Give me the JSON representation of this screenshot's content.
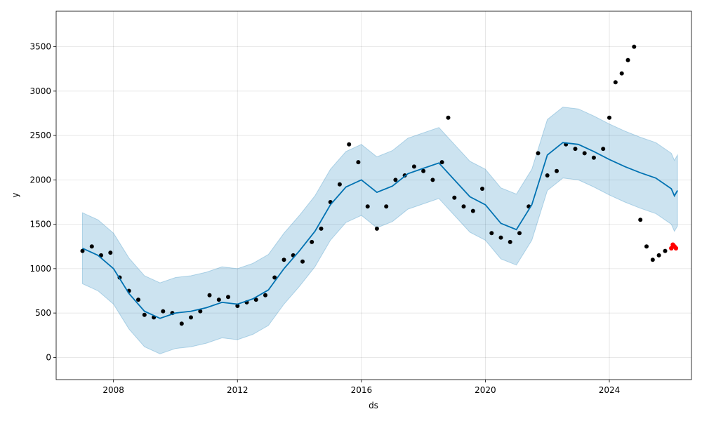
{
  "chart_data": {
    "type": "line",
    "title": "",
    "xlabel": "ds",
    "ylabel": "y",
    "xlim": [
      2006.15,
      2026.65
    ],
    "ylim": [
      -250,
      3900
    ],
    "x_ticks": [
      2008,
      2012,
      2016,
      2020,
      2024
    ],
    "x_tick_labels": [
      "2008",
      "2012",
      "2016",
      "2020",
      "2024"
    ],
    "y_ticks": [
      0,
      500,
      1000,
      1500,
      2000,
      2500,
      3000,
      3500
    ],
    "y_tick_labels": [
      "0",
      "500",
      "1000",
      "1500",
      "2000",
      "2500",
      "3000",
      "3500"
    ],
    "grid": true,
    "legend": "none",
    "colors": {
      "observed": "#000000",
      "forecast": "#0072B2",
      "interval": "#0072B2",
      "recent": "#ff0000"
    },
    "series": [
      {
        "role": "forecast",
        "x": [
          2007.0,
          2007.5,
          2008.0,
          2008.5,
          2009.0,
          2009.5,
          2010.0,
          2010.5,
          2011.0,
          2011.5,
          2012.0,
          2012.5,
          2013.0,
          2013.5,
          2014.0,
          2014.5,
          2015.0,
          2015.5,
          2016.0,
          2016.5,
          2017.0,
          2017.5,
          2018.0,
          2018.5,
          2019.0,
          2019.5,
          2020.0,
          2020.5,
          2021.0,
          2021.5,
          2022.0,
          2022.5,
          2023.0,
          2023.5,
          2024.0,
          2024.5,
          2025.0,
          2025.5,
          2026.0,
          2026.1,
          2026.2
        ],
        "y": [
          1230,
          1150,
          1000,
          720,
          520,
          440,
          500,
          520,
          560,
          620,
          600,
          660,
          760,
          1000,
          1200,
          1420,
          1720,
          1920,
          2000,
          1860,
          1930,
          2070,
          2130,
          2190,
          2000,
          1810,
          1720,
          1510,
          1440,
          1720,
          2280,
          2420,
          2400,
          2320,
          2230,
          2150,
          2080,
          2020,
          1900,
          1820,
          1880
        ],
        "lower": [
          830,
          750,
          600,
          320,
          120,
          40,
          100,
          120,
          160,
          220,
          200,
          260,
          360,
          600,
          800,
          1020,
          1320,
          1520,
          1600,
          1460,
          1530,
          1670,
          1730,
          1790,
          1600,
          1410,
          1320,
          1110,
          1040,
          1320,
          1880,
          2020,
          2000,
          1920,
          1830,
          1750,
          1680,
          1620,
          1500,
          1420,
          1480
        ],
        "upper": [
          1630,
          1550,
          1400,
          1120,
          920,
          840,
          900,
          920,
          960,
          1020,
          1000,
          1060,
          1160,
          1400,
          1600,
          1820,
          2120,
          2320,
          2400,
          2260,
          2330,
          2470,
          2530,
          2590,
          2400,
          2210,
          2120,
          1910,
          1840,
          2120,
          2680,
          2820,
          2800,
          2720,
          2630,
          2550,
          2480,
          2420,
          2300,
          2220,
          2280
        ]
      },
      {
        "role": "observed",
        "x": [
          2007.0,
          2007.3,
          2007.6,
          2007.9,
          2008.2,
          2008.5,
          2008.8,
          2009.0,
          2009.3,
          2009.6,
          2009.9,
          2010.2,
          2010.5,
          2010.8,
          2011.1,
          2011.4,
          2011.7,
          2012.0,
          2012.3,
          2012.6,
          2012.9,
          2013.2,
          2013.5,
          2013.8,
          2014.1,
          2014.4,
          2014.7,
          2015.0,
          2015.3,
          2015.6,
          2015.9,
          2016.2,
          2016.5,
          2016.8,
          2017.1,
          2017.4,
          2017.7,
          2018.0,
          2018.3,
          2018.6,
          2018.8,
          2019.0,
          2019.3,
          2019.6,
          2019.9,
          2020.2,
          2020.5,
          2020.8,
          2021.1,
          2021.4,
          2021.7,
          2022.0,
          2022.3,
          2022.6,
          2022.9,
          2023.2,
          2023.5,
          2023.8,
          2024.0,
          2024.2,
          2024.4,
          2024.6,
          2024.8,
          2025.0,
          2025.2,
          2025.4,
          2025.6,
          2025.8,
          2026.0
        ],
        "y": [
          1200,
          1250,
          1150,
          1180,
          900,
          750,
          650,
          480,
          450,
          520,
          500,
          380,
          450,
          520,
          700,
          650,
          680,
          580,
          620,
          650,
          700,
          900,
          1100,
          1150,
          1080,
          1300,
          1450,
          1750,
          1950,
          2400,
          2200,
          1700,
          1450,
          1700,
          2000,
          2050,
          2150,
          2100,
          2000,
          2200,
          2700,
          1800,
          1700,
          1650,
          1900,
          1400,
          1350,
          1300,
          1400,
          1700,
          2300,
          2050,
          2100,
          2400,
          2350,
          2300,
          2250,
          2350,
          2700,
          3100,
          3200,
          3350,
          3500,
          1550,
          1250,
          1100,
          1150,
          1200,
          1230
        ]
      },
      {
        "role": "recent",
        "x": [
          2026.0,
          2026.05,
          2026.1,
          2026.15
        ],
        "y": [
          1230,
          1270,
          1250,
          1230
        ]
      }
    ]
  }
}
